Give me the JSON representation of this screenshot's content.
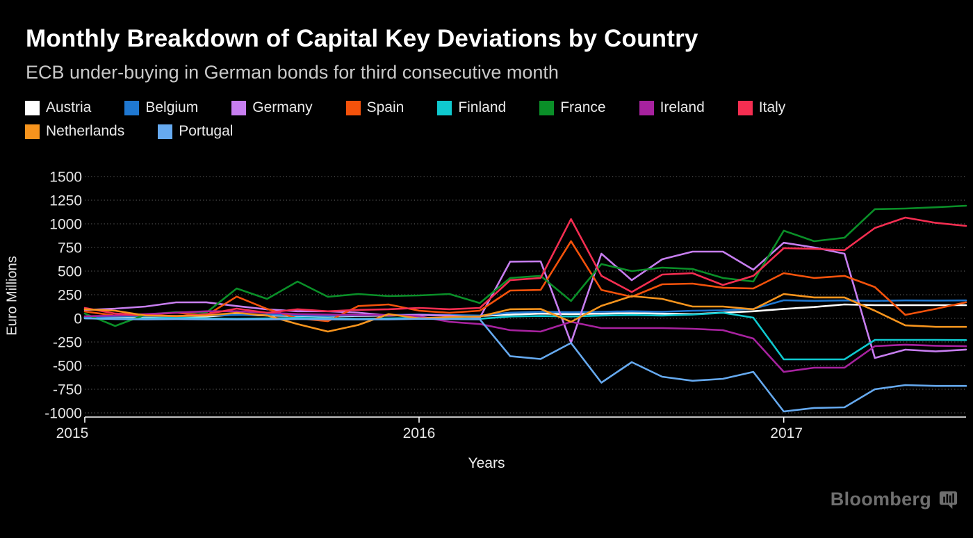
{
  "header": {
    "title": "Monthly Breakdown of Capital Key Deviations by Country",
    "subtitle": "ECB under-buying in German bonds for third consecutive month"
  },
  "legend": {
    "rows": [
      [
        {
          "label": "Austria",
          "color": "#ffffff"
        },
        {
          "label": "Belgium",
          "color": "#1f78d1"
        },
        {
          "label": "Germany",
          "color": "#c77ef0"
        },
        {
          "label": "Spain",
          "color": "#f4520b"
        },
        {
          "label": "Finland",
          "color": "#0fc9cf"
        },
        {
          "label": "France",
          "color": "#0a8f28"
        },
        {
          "label": "Ireland",
          "color": "#a7229f"
        },
        {
          "label": "Italy",
          "color": "#f52e51"
        }
      ],
      [
        {
          "label": "Netherlands",
          "color": "#f7941d"
        },
        {
          "label": "Portugal",
          "color": "#66aaf0"
        }
      ]
    ]
  },
  "chart_data": {
    "type": "line",
    "title": "Monthly Breakdown of Capital Key Deviations by Country",
    "subtitle": "ECB under-buying in German bonds for third consecutive month",
    "xlabel": "Years",
    "ylabel": "Euro Millions",
    "ylim": [
      -1000,
      1500
    ],
    "y_ticks": [
      1500,
      1250,
      1000,
      750,
      500,
      250,
      0,
      -250,
      -500,
      -750,
      -1000
    ],
    "x_tick_labels": [
      "2015",
      "2016",
      "2017"
    ],
    "grid": "dotted-horizontal",
    "legend_position": "top",
    "x": [
      "Feb 2015",
      "Mar 2015",
      "Apr 2015",
      "May 2015",
      "Jun 2015",
      "Jul 2015",
      "Aug 2015",
      "Sep 2015",
      "Oct 2015",
      "Nov 2015",
      "Dec 2015",
      "Jan 2016",
      "Feb 2016",
      "Mar 2016",
      "Apr 2016",
      "May 2016",
      "Jun 2016",
      "Jul 2016",
      "Aug 2016",
      "Sep 2016",
      "Oct 2016",
      "Nov 2016",
      "Dec 2016",
      "Jan 2017",
      "Feb 2017",
      "Mar 2017",
      "Apr 2017",
      "May 2017",
      "Jun 2017",
      "Jul 2017"
    ],
    "series": [
      {
        "name": "Austria",
        "color": "#ffffff",
        "values": [
          10,
          15,
          20,
          15,
          20,
          40,
          30,
          25,
          20,
          25,
          30,
          35,
          30,
          25,
          40,
          50,
          45,
          50,
          55,
          50,
          45,
          60,
          75,
          100,
          120,
          147,
          140,
          140,
          140,
          140
        ]
      },
      {
        "name": "Belgium",
        "color": "#1f78d1",
        "values": [
          15,
          20,
          25,
          20,
          30,
          35,
          40,
          30,
          25,
          30,
          35,
          40,
          35,
          30,
          60,
          70,
          65,
          70,
          75,
          70,
          80,
          85,
          100,
          191,
          185,
          190,
          185,
          190,
          188,
          190
        ]
      },
      {
        "name": "Germany",
        "color": "#c77ef0",
        "values": [
          88,
          103,
          125,
          169,
          170,
          130,
          95,
          75,
          75,
          60,
          30,
          37,
          30,
          7,
          600,
          603,
          -257,
          684,
          404,
          625,
          706,
          706,
          515,
          800,
          750,
          684,
          -419,
          -331,
          -350,
          -330
        ]
      },
      {
        "name": "Spain",
        "color": "#f4520b",
        "values": [
          73,
          30,
          35,
          60,
          30,
          230,
          100,
          0,
          -30,
          130,
          147,
          81,
          59,
          81,
          294,
          301,
          816,
          301,
          228,
          360,
          368,
          324,
          316,
          478,
          427,
          449,
          331,
          37,
          100,
          170
        ]
      },
      {
        "name": "Finland",
        "color": "#0fc9cf",
        "values": [
          0,
          -5,
          0,
          5,
          0,
          -5,
          0,
          5,
          0,
          -5,
          0,
          5,
          0,
          -5,
          20,
          25,
          20,
          30,
          35,
          30,
          40,
          59,
          7,
          -434,
          -434,
          -434,
          -228,
          -228,
          -228,
          -230
        ]
      },
      {
        "name": "France",
        "color": "#0a8f28",
        "values": [
          51,
          -81,
          40,
          66,
          60,
          316,
          206,
          390,
          228,
          257,
          235,
          243,
          257,
          162,
          427,
          449,
          184,
          574,
          500,
          537,
          522,
          427,
          390,
          927,
          816,
          853,
          1155,
          1162,
          1175,
          1191
        ]
      },
      {
        "name": "Ireland",
        "color": "#a7229f",
        "values": [
          22,
          30,
          45,
          60,
          75,
          75,
          60,
          45,
          40,
          35,
          37,
          22,
          -37,
          -60,
          -125,
          -140,
          -37,
          -103,
          -103,
          -103,
          -110,
          -125,
          -213,
          -566,
          -522,
          -522,
          -294,
          -279,
          -290,
          -295
        ]
      },
      {
        "name": "Italy",
        "color": "#f52e51",
        "values": [
          110,
          51,
          37,
          22,
          44,
          103,
          59,
          96,
          75,
          90,
          96,
          110,
          96,
          110,
          404,
          427,
          1050,
          450,
          279,
          463,
          478,
          353,
          449,
          743,
          735,
          721,
          956,
          1066,
          1010,
          978
        ]
      },
      {
        "name": "Netherlands",
        "color": "#f7941d",
        "values": [
          96,
          81,
          30,
          25,
          30,
          59,
          30,
          -60,
          -140,
          -70,
          45,
          0,
          15,
          20,
          96,
          99,
          -37,
          132,
          235,
          206,
          125,
          125,
          96,
          257,
          221,
          221,
          81,
          -74,
          -90,
          -90
        ]
      },
      {
        "name": "Portugal",
        "color": "#66aaf0",
        "values": [
          0,
          -8,
          -10,
          -8,
          -10,
          -12,
          -10,
          -8,
          -10,
          -12,
          -10,
          -5,
          -8,
          -10,
          -400,
          -430,
          -260,
          -680,
          -463,
          -618,
          -660,
          -640,
          -566,
          -985,
          -948,
          -941,
          -750,
          -706,
          -715,
          -715
        ]
      }
    ]
  },
  "axis": {
    "ylabel": "Euro Millions",
    "xlabel": "Years"
  },
  "footer": {
    "brand": "Bloomberg"
  },
  "colors": {
    "background": "#000000",
    "grid": "#575757",
    "axis": "#ffffff",
    "tick_text": "#e6e6e6",
    "subtitle_text": "#c9c9c9",
    "brand_gray": "#6f6f6f"
  }
}
